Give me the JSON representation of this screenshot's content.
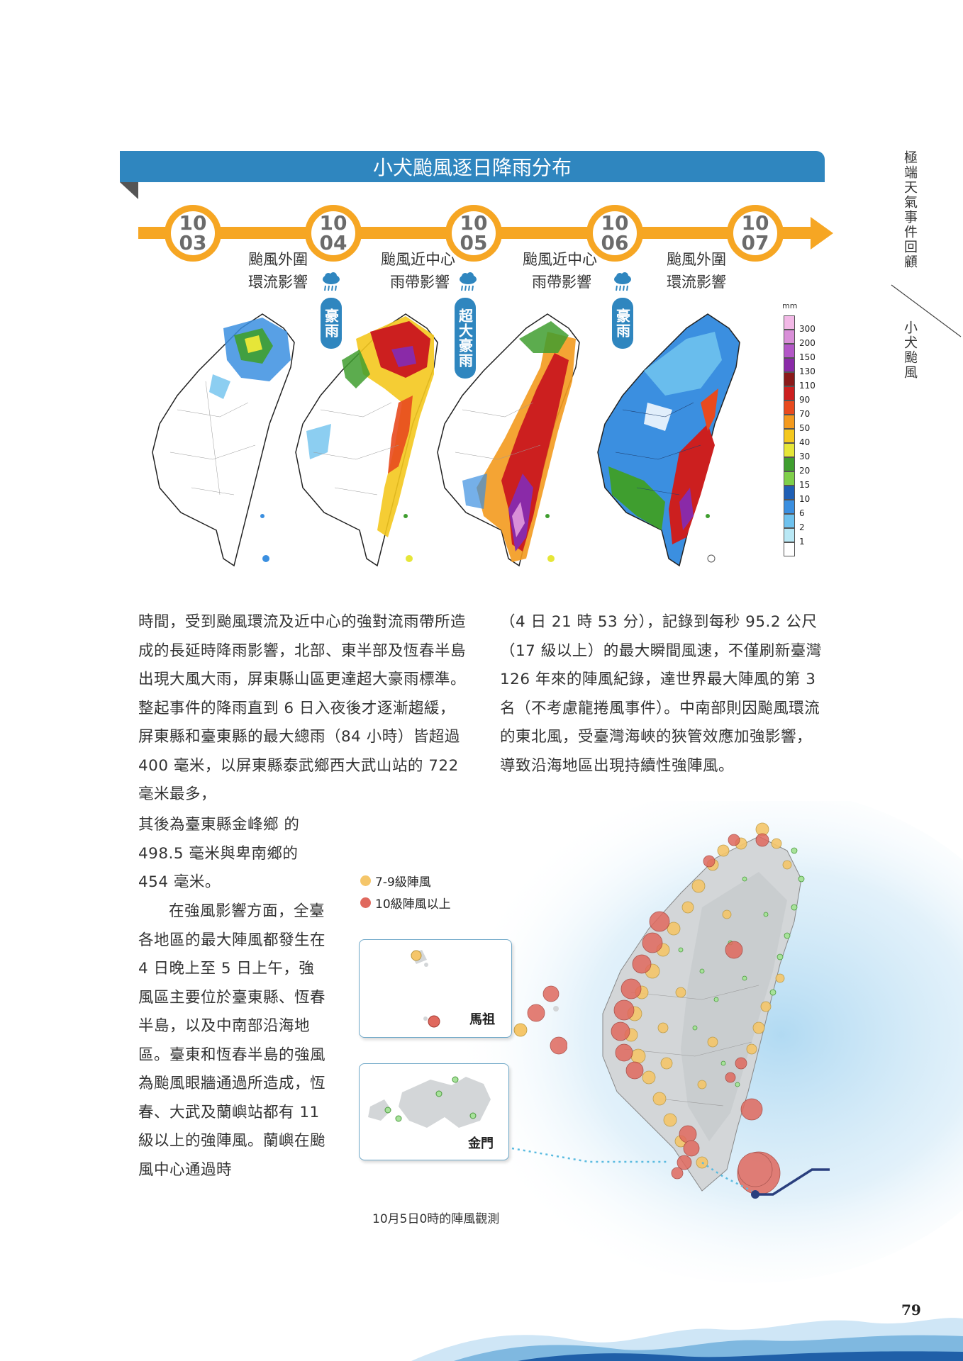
{
  "running_header": {
    "section": "極端天氣事件回顧",
    "chapter": "小犬颱風"
  },
  "banner_title": "小犬颱風逐日降雨分布",
  "timeline": {
    "dates": [
      {
        "month": "10",
        "day": "03"
      },
      {
        "month": "10",
        "day": "04"
      },
      {
        "month": "10",
        "day": "05"
      },
      {
        "month": "10",
        "day": "06"
      },
      {
        "month": "10",
        "day": "07"
      }
    ],
    "phases": [
      {
        "line1": "颱風外圍",
        "line2": "環流影響"
      },
      {
        "line1": "颱風近中心",
        "line2": "雨帶影響"
      },
      {
        "line1": "颱風近中心",
        "line2": "雨帶影響"
      },
      {
        "line1": "颱風外圍",
        "line2": "環流影響"
      }
    ],
    "rain_tags": [
      "豪雨",
      "超大豪雨",
      "豪雨"
    ]
  },
  "rain_legend": {
    "unit": "mm",
    "levels": [
      {
        "label": "300",
        "color": "#f2b8e6"
      },
      {
        "label": "200",
        "color": "#d98fd8"
      },
      {
        "label": "150",
        "color": "#b357c7"
      },
      {
        "label": "130",
        "color": "#8a2aa8"
      },
      {
        "label": "110",
        "color": "#8b1a1a"
      },
      {
        "label": "90",
        "color": "#cc1f1f"
      },
      {
        "label": "70",
        "color": "#e84a1e"
      },
      {
        "label": "50",
        "color": "#f39a1e"
      },
      {
        "label": "40",
        "color": "#f4c81e"
      },
      {
        "label": "30",
        "color": "#e6e638"
      },
      {
        "label": "20",
        "color": "#3f9e2f"
      },
      {
        "label": "15",
        "color": "#7fcf4a"
      },
      {
        "label": "10",
        "color": "#1f5fb5"
      },
      {
        "label": "6",
        "color": "#3b8fe0"
      },
      {
        "label": "2",
        "color": "#6fc2ee"
      },
      {
        "label": "1",
        "color": "#b9e8f5"
      },
      {
        "label": "",
        "color": "#ffffff"
      }
    ]
  },
  "body_text": {
    "col1": "時間，受到颱風環流及近中心的強對流雨帶所造成的長延時降雨影響，北部、東半部及恆春半島出現大風大雨，屏東縣山區更達超大豪雨標準。整起事件的降雨直到 6 日入夜後才逐漸趨緩，屏東縣和臺東縣的最大總雨（84 小時）皆超過 400 毫米，以屏東縣泰武鄉西大武山站的 722 毫米最多，",
    "col1_cont": "其後為臺東縣金峰鄉 的 498.5 毫米與卑南鄉的 454 毫米。",
    "col1_para2": "在強風影響方面，全臺各地區的最大陣風都發生在 4 日晚上至 5 日上午，強風區主要位於臺東縣、恆春半島，以及中南部沿海地區。臺東和恆春半島的強風為颱風眼牆通過所造成，恆春、大武及蘭嶼站都有 11 級以上的強陣風。蘭嶼在颱風中心通過時",
    "col2": "（4 日 21 時 53 分），記錄到每秒 95.2 公尺（17 級以上）的最大瞬間風速，不僅刷新臺灣 126 年來的陣風紀錄，達世界最大陣風的第 3 名（不考慮龍捲風事件）。中南部則因颱風環流的東北風，受臺灣海峽的狹管效應加強影響，導致沿海地區出現持續性強陣風。"
  },
  "wind_map": {
    "legend": [
      {
        "label": "7-9級陣風",
        "color": "#f5c66a"
      },
      {
        "label": "10級陣風以上",
        "color": "#e0695e"
      }
    ],
    "inset_matsu": "馬祖",
    "inset_kinmen": "金門",
    "caption": "10月5日0時的陣風觀測"
  },
  "page_number": "79"
}
